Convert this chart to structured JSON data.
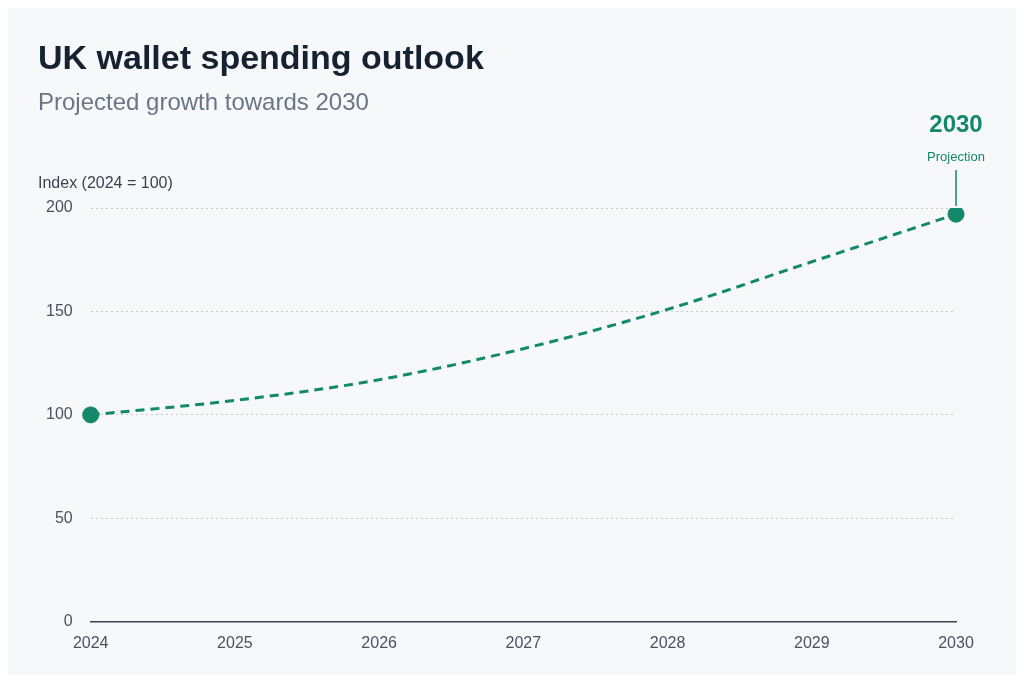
{
  "chart_data": {
    "type": "line",
    "title": "UK wallet spending outlook",
    "subtitle": "Projected growth towards 2030",
    "ylabel": "Index (2024 = 100)",
    "categories": [
      "2024",
      "2025",
      "2026",
      "2027",
      "2028",
      "2029",
      "2030"
    ],
    "series": [
      {
        "color": "#13896a",
        "values": [
          100,
          107,
          117,
          132,
          151,
          174,
          197
        ],
        "marker": "none",
        "line_style": "dashed"
      },
      {
        "type": "scatter",
        "color": "#13896a",
        "values": [
          100,
          null,
          null,
          null,
          null,
          null,
          197
        ],
        "marker": "circle"
      }
    ],
    "ylim": [
      0,
      200
    ],
    "yticks": [
      0,
      50,
      100,
      150,
      200
    ],
    "grid": "y",
    "legend": false,
    "annotations": [
      "2030",
      "Projection"
    ]
  }
}
